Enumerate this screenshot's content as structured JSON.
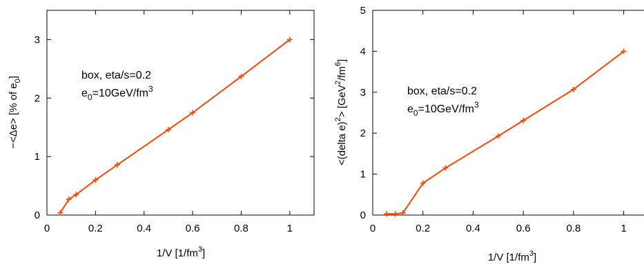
{
  "colors": {
    "series": "#ff4500",
    "axis": "#000000"
  },
  "chart_data": [
    {
      "type": "line",
      "xlim": [
        0,
        1.1
      ],
      "ylim": [
        0,
        3.5
      ],
      "xticks": [
        "0",
        "0.2",
        "0.4",
        "0.6",
        "0.8",
        "1"
      ],
      "yticks": [
        "0",
        "1",
        "2",
        "3"
      ],
      "xlabel": {
        "main": "1/V   [1/fm",
        "sup": "3",
        "end": "]"
      },
      "ylabel": {
        "main": "−<Δe>   [% of e",
        "sub": "0",
        "end": "]"
      },
      "annotation": {
        "line1": "box, eta/s=0.2",
        "e_main": "e",
        "e_sub": "0",
        "e_rest": "=10GeV/fm",
        "e_sup": "3"
      },
      "series": [
        {
          "x": [
            0.055,
            0.09,
            0.12,
            0.2,
            0.29,
            0.5,
            0.6,
            0.8,
            1.0
          ],
          "y": [
            0.04,
            0.27,
            0.35,
            0.6,
            0.86,
            1.46,
            1.75,
            2.37,
            3.0
          ]
        }
      ]
    },
    {
      "type": "line",
      "xlim": [
        0,
        1.1
      ],
      "ylim": [
        0,
        5
      ],
      "xticks": [
        "0",
        "0.2",
        "0.4",
        "0.6",
        "0.8",
        "1"
      ],
      "yticks": [
        "0",
        "1",
        "2",
        "3",
        "4",
        "5"
      ],
      "xlabel": {
        "main": "1/V [1/fm",
        "sup": "3",
        "end": "]"
      },
      "ylabel": {
        "main": "<(delta e)",
        "sup1": "2",
        "mid": "> [GeV",
        "sup2": "2",
        "mid2": "/fm",
        "sup3": "6",
        "end": "]"
      },
      "annotation": {
        "line1": "box, eta/s=0.2",
        "e_main": "e",
        "e_sub": "0",
        "e_rest": "=10GeV/fm",
        "e_sup": "3"
      },
      "series": [
        {
          "x": [
            0.055,
            0.09,
            0.12,
            0.2,
            0.29,
            0.5,
            0.6,
            0.8,
            1.0
          ],
          "y": [
            0.03,
            0.03,
            0.05,
            0.78,
            1.15,
            1.93,
            2.31,
            3.07,
            4.0
          ]
        }
      ]
    }
  ]
}
